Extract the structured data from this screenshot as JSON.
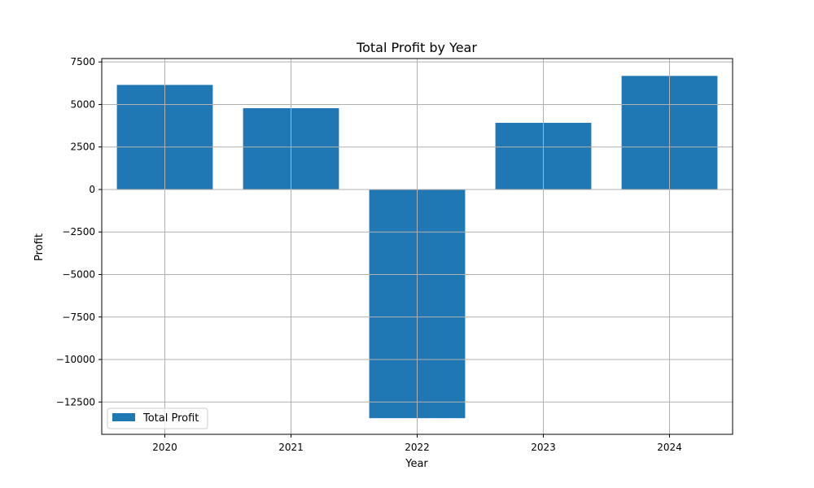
{
  "chart_data": {
    "type": "bar",
    "title": "Total Profit by Year",
    "xlabel": "Year",
    "ylabel": "Profit",
    "categories": [
      "2020",
      "2021",
      "2022",
      "2023",
      "2024"
    ],
    "series": [
      {
        "name": "Total Profit",
        "values": [
          6150,
          4780,
          -13450,
          3920,
          6680
        ]
      }
    ],
    "ylim": [
      -14400,
      7700
    ],
    "yticks": [
      -12500,
      -10000,
      -7500,
      -5000,
      -2500,
      0,
      2500,
      5000,
      7500
    ],
    "ytick_labels": [
      "−12500",
      "−10000",
      "−7500",
      "−5000",
      "−2500",
      "0",
      "2500",
      "5000",
      "7500"
    ],
    "grid": true,
    "legend_position": "lower-left",
    "colors": {
      "bar": "#1f77b4",
      "grid": "#b0b0b0",
      "axis": "#000000"
    }
  }
}
